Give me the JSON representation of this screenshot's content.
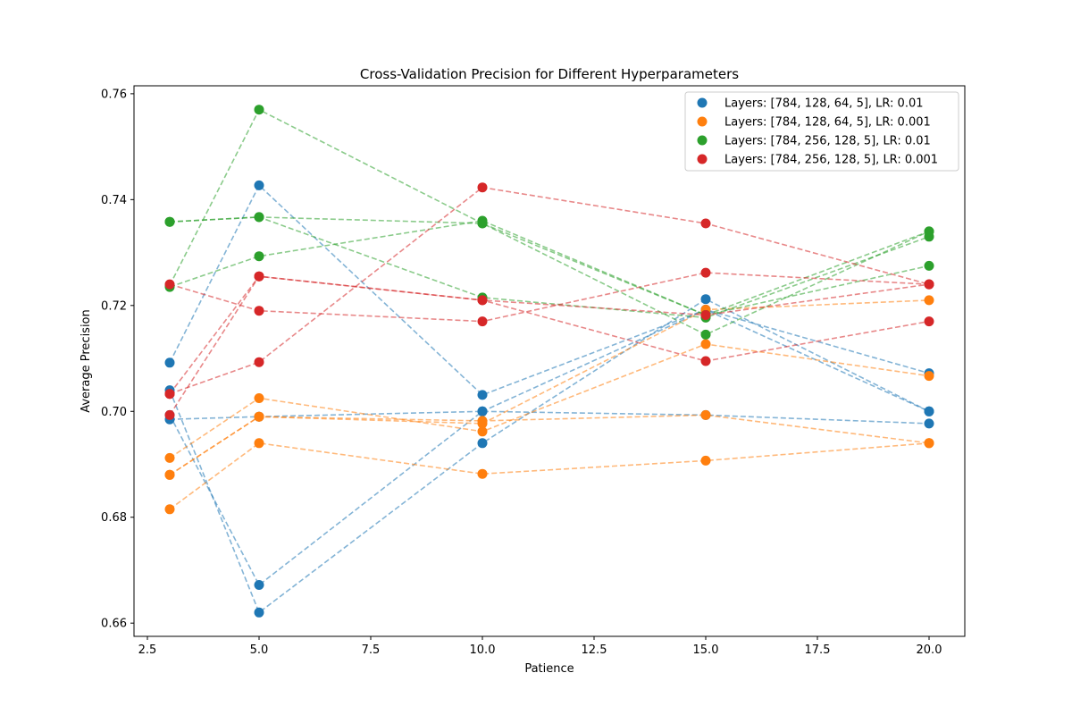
{
  "chart_data": {
    "type": "scatter",
    "title": "Cross-Validation Precision for Different Hyperparameters",
    "xlabel": "Patience",
    "ylabel": "Average Precision",
    "xlim": [
      2.2,
      20.8
    ],
    "ylim": [
      0.6575,
      0.7615
    ],
    "xticks": [
      "2.5",
      "5.0",
      "7.5",
      "10.0",
      "12.5",
      "15.0",
      "17.5",
      "20.0"
    ],
    "yticks": [
      "0.66",
      "0.68",
      "0.70",
      "0.72",
      "0.74",
      "0.76"
    ],
    "legend_position": "top-right",
    "line_style": "dashed",
    "x_values": [
      3,
      5,
      10,
      15,
      20
    ],
    "series": [
      {
        "name": "Layers: [784, 128, 64, 5], LR: 0.01",
        "color": "#1f77b4",
        "runs": [
          [
            0.7092,
            0.7427,
            0.7031,
            0.7192,
            0.7072
          ],
          [
            0.704,
            0.662,
            0.694,
            0.7212,
            0.7
          ],
          [
            0.6985,
            0.699,
            0.7,
            0.6993,
            0.6977
          ],
          [
            0.6993,
            0.6672,
            0.7,
            0.7192,
            0.7
          ]
        ]
      },
      {
        "name": "Layers: [784, 128, 64, 5], LR: 0.001",
        "color": "#ff7f0e",
        "runs": [
          [
            0.6912,
            0.7025,
            0.6962,
            0.7127,
            0.7067
          ],
          [
            0.688,
            0.699,
            0.6977,
            0.7192,
            0.721
          ],
          [
            0.6815,
            0.694,
            0.6882,
            0.6907,
            0.694
          ],
          [
            0.688,
            0.699,
            0.6982,
            0.6993,
            0.694
          ]
        ]
      },
      {
        "name": "Layers: [784, 256, 128, 5], LR: 0.01",
        "color": "#2ca02c",
        "runs": [
          [
            0.7358,
            0.7367,
            0.7215,
            0.7177,
            0.733
          ],
          [
            0.7238,
            0.757,
            0.7355,
            0.7145,
            0.734
          ],
          [
            0.7235,
            0.7293,
            0.736,
            0.7182,
            0.7275
          ],
          [
            0.7358,
            0.7367,
            0.7355,
            0.7182,
            0.734
          ]
        ]
      },
      {
        "name": "Layers: [784, 256, 128, 5], LR: 0.001",
        "color": "#d62728",
        "runs": [
          [
            0.724,
            0.719,
            0.717,
            0.7262,
            0.724
          ],
          [
            0.7033,
            0.7255,
            0.721,
            0.7095,
            0.717
          ],
          [
            0.7033,
            0.7093,
            0.7423,
            0.7355,
            0.724
          ],
          [
            0.6993,
            0.7255,
            0.721,
            0.7182,
            0.724
          ]
        ]
      }
    ]
  }
}
